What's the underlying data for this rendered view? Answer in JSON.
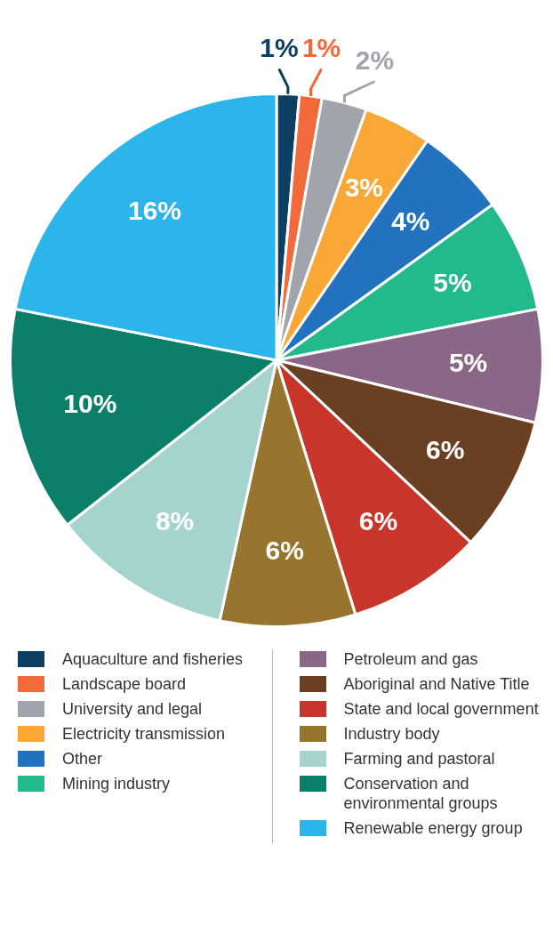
{
  "chart_data": {
    "type": "pie",
    "categories": [
      "Aquaculture and fisheries",
      "Landscape board",
      "University and legal",
      "Electricity transmission",
      "Other",
      "Mining industry",
      "Petroleum and gas",
      "Aboriginal and Native Title",
      "State and local government",
      "Industry body",
      "Farming and pastoral",
      "Conservation and environmental groups",
      "Renewable energy group"
    ],
    "values": [
      1,
      1,
      2,
      3,
      4,
      5,
      5,
      6,
      6,
      6,
      8,
      10,
      16
    ],
    "value_labels": [
      "1%",
      "1%",
      "2%",
      "3%",
      "4%",
      "5%",
      "5%",
      "6%",
      "6%",
      "6%",
      "8%",
      "10%",
      "16%"
    ],
    "colors": [
      "#0d3f63",
      "#f26a3c",
      "#a2a4ad",
      "#f9a737",
      "#2372c0",
      "#22b98d",
      "#8a6787",
      "#6b3f22",
      "#c8362b",
      "#98752f",
      "#a5d4cf",
      "#0c7f6b",
      "#2cb5ea"
    ],
    "legend": "bottom"
  }
}
